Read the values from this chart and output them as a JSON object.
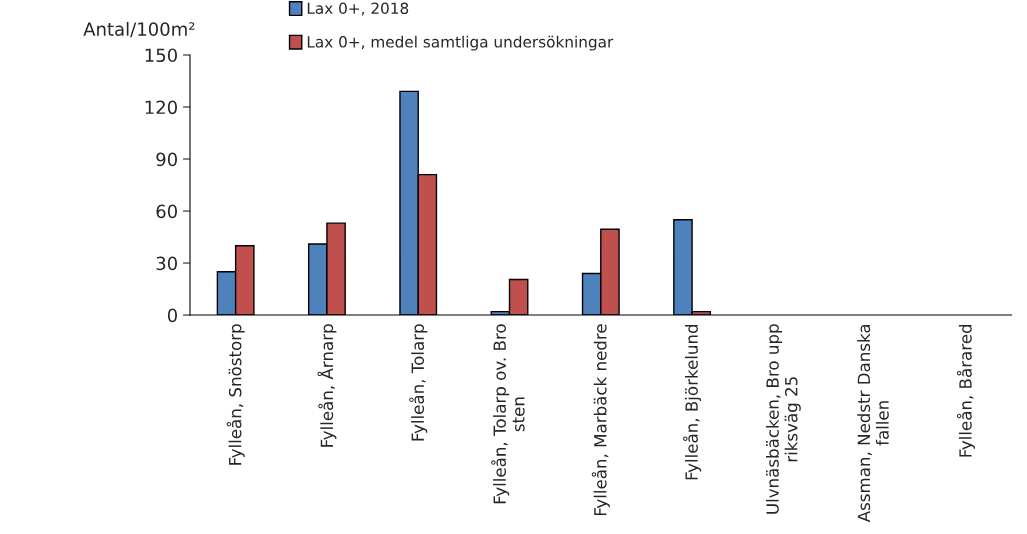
{
  "chart_data": {
    "type": "bar",
    "ylabel": "Antal/100m²",
    "categories": [
      "Fylleån, Snöstorp",
      "Fylleån, Årnarp",
      "Fylleån, Tolarp",
      "Fylleån, Tolarp ov. Bro\nsten",
      "Fylleån, Marbäck nedre",
      "Fylleån, Björkelund",
      "Ulvnäsbäcken, Bro upp\nriksväg 25",
      "Assman, Nedstr Danska\nfallen",
      "Fylleån, Bårared"
    ],
    "series": [
      {
        "name": "Lax 0+, 2018",
        "color": "#4f81bd",
        "values": [
          25,
          41,
          129,
          2,
          24,
          55,
          null,
          null,
          null
        ]
      },
      {
        "name": "Lax 0+, medel samtliga undersökningar",
        "color": "#c0504d",
        "values": [
          40,
          53,
          81,
          20.5,
          49.5,
          2,
          null,
          null,
          null
        ]
      }
    ],
    "ylim": [
      0,
      150
    ],
    "yticks": [
      0,
      30,
      60,
      90,
      120,
      150
    ],
    "grid": false,
    "legend": "top"
  }
}
